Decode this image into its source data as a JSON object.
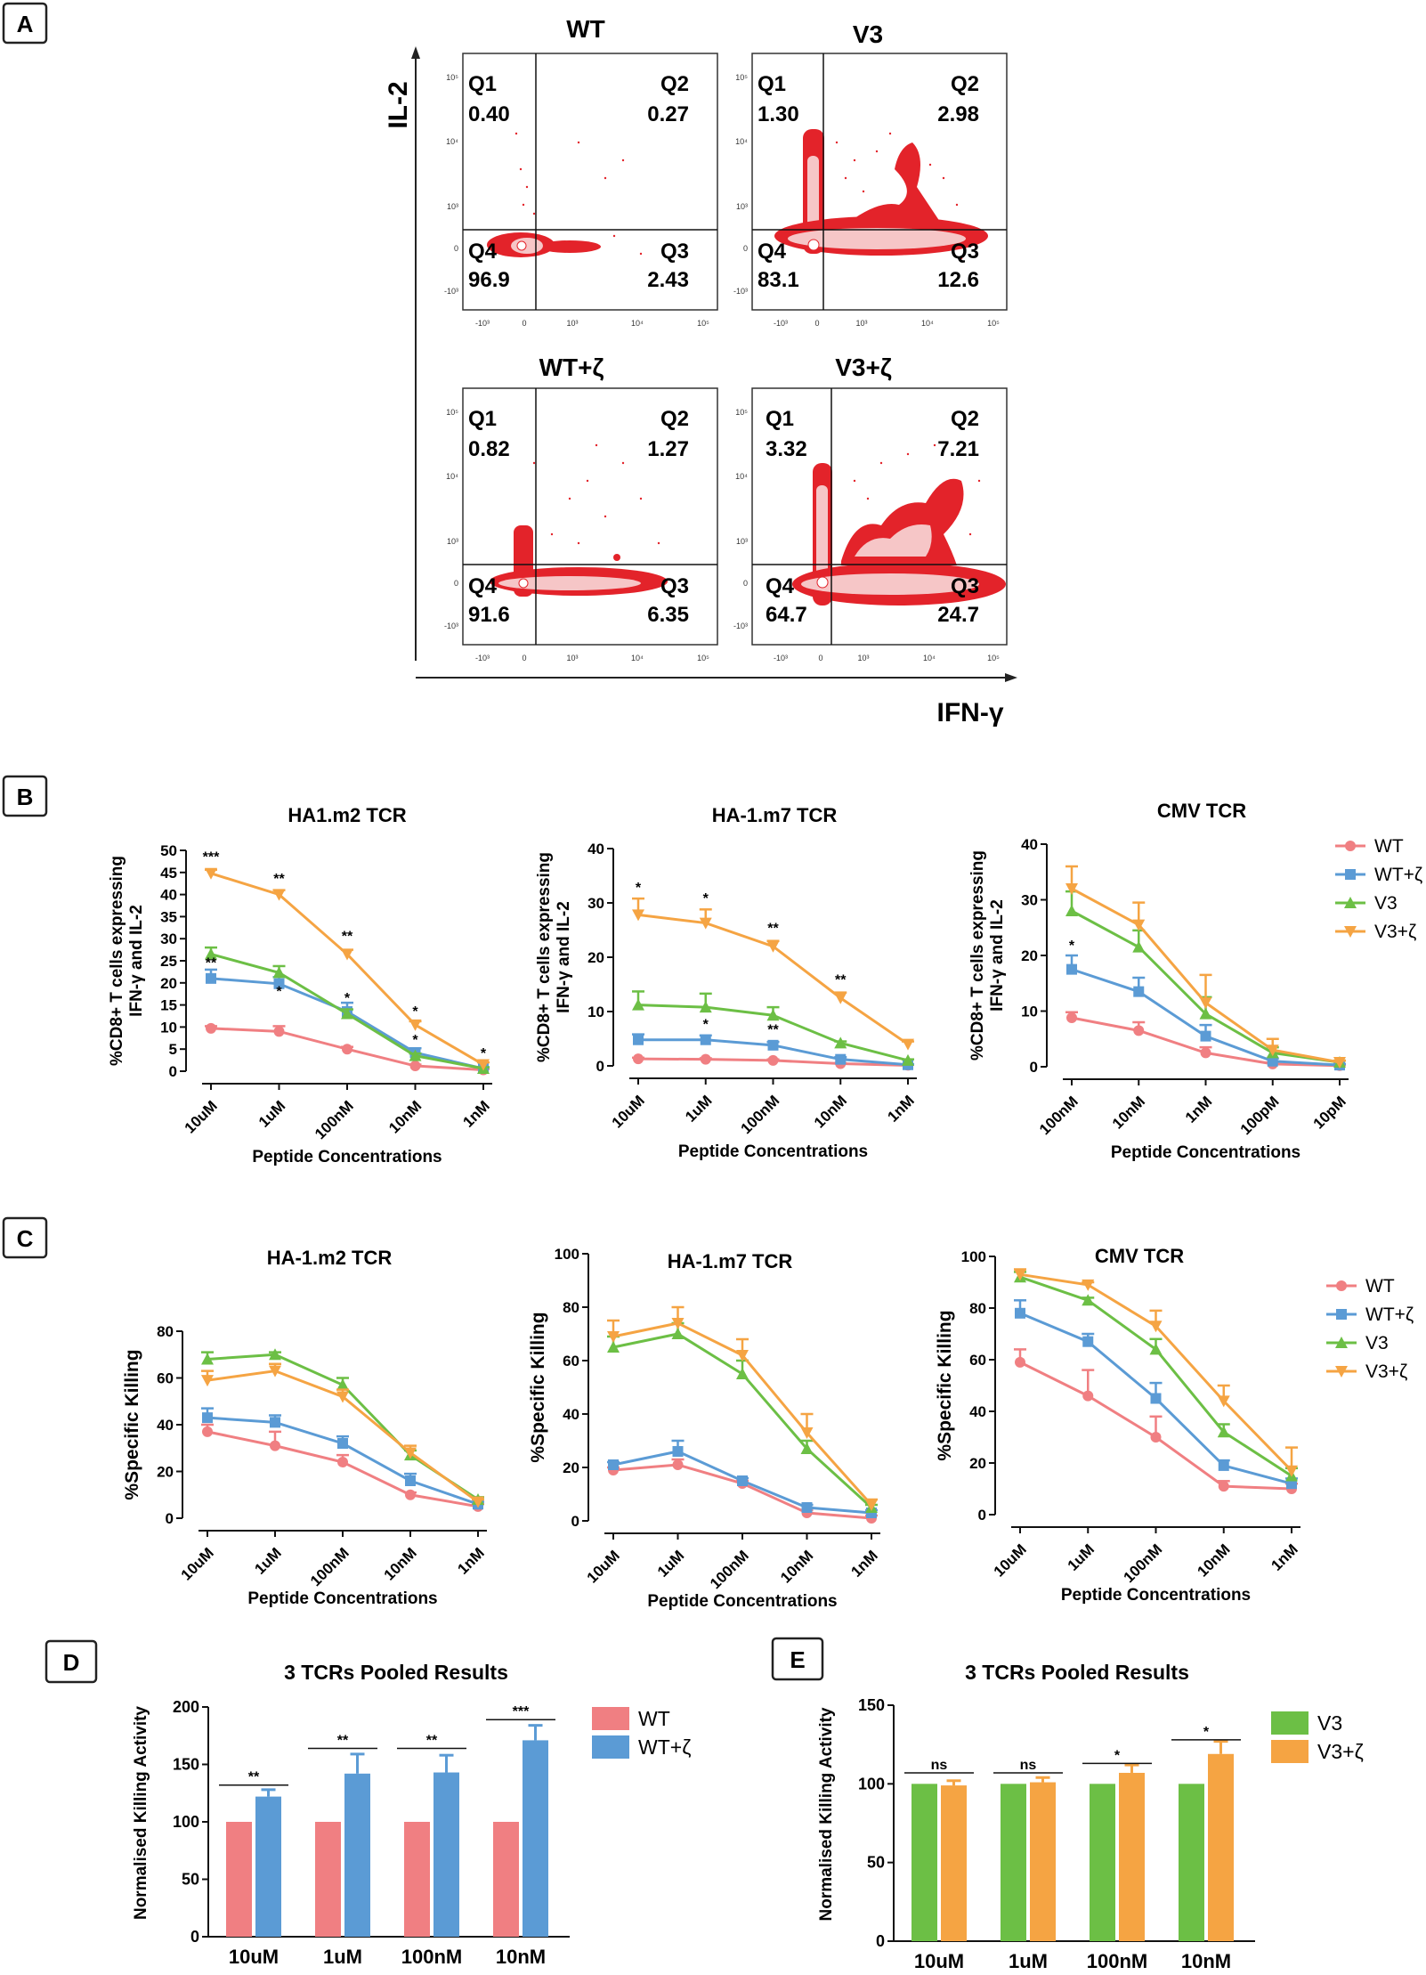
{
  "colors": {
    "WT": "#f07f82",
    "WT+ζ": "#5b9bd5",
    "V3": "#6cbf45",
    "V3+ζ": "#f5a443",
    "dotRed": "#e3232a"
  },
  "panelA": {
    "label": "A",
    "y_axis_label": "IL-2",
    "x_axis_label": "IFN-γ",
    "x_tick_labels": [
      "-10³",
      "0",
      "10³",
      "10⁴",
      "10⁵"
    ],
    "y_tick_labels": [
      "10⁵",
      "10⁴",
      "10³",
      "0",
      "-10³"
    ],
    "plots": [
      {
        "title": "WT",
        "Q1": "0.40",
        "Q2": "0.27",
        "Q3": "2.43",
        "Q4": "96.9"
      },
      {
        "title": "V3",
        "Q1": "1.30",
        "Q2": "2.98",
        "Q3": "12.6",
        "Q4": "83.1"
      },
      {
        "title": "WT+ζ",
        "Q1": "0.82",
        "Q2": "1.27",
        "Q3": "6.35",
        "Q4": "91.6"
      },
      {
        "title": "V3+ζ",
        "Q1": "3.32",
        "Q2": "7.21",
        "Q3": "24.7",
        "Q4": "64.7"
      }
    ]
  },
  "panelB": {
    "label": "B",
    "ylabel_line1": "%CD8+ T cells expressing",
    "ylabel_line2": "IFN-γ and IL-2",
    "xlabel": "Peptide Concentrations",
    "legend": [
      "WT",
      "WT+ζ",
      "V3",
      "V3+ζ"
    ]
  },
  "panelC": {
    "label": "C",
    "ylabel": "%Specific Killing",
    "xlabel": "Peptide Concentrations",
    "legend": [
      "WT",
      "WT+ζ",
      "V3",
      "V3+ζ"
    ]
  },
  "chart_data": [
    {
      "type": "line",
      "panel": "B",
      "title": "HA1.m2 TCR",
      "categories": [
        "10uM",
        "1uM",
        "100nM",
        "10nM",
        "1nM"
      ],
      "ylim": [
        0,
        50
      ],
      "yticks": [
        0,
        5,
        10,
        15,
        20,
        25,
        30,
        35,
        40,
        45,
        50
      ],
      "series": [
        {
          "name": "WT",
          "values": [
            9.7,
            9.0,
            5.0,
            1.2,
            0.3
          ],
          "err": [
            0.5,
            1.2,
            0.5,
            0.3,
            0.2
          ]
        },
        {
          "name": "WT+ζ",
          "values": [
            21.0,
            19.8,
            13.5,
            4.2,
            0.6
          ],
          "err": [
            2.0,
            1.5,
            2.0,
            1.0,
            0.3
          ]
        },
        {
          "name": "V3",
          "values": [
            26.5,
            22.3,
            13.0,
            3.5,
            0.6
          ],
          "err": [
            1.5,
            1.5,
            1.0,
            0.5,
            0.3
          ]
        },
        {
          "name": "V3+ζ",
          "values": [
            44.8,
            40.0,
            26.5,
            10.5,
            1.5
          ],
          "err": [
            0.8,
            1.0,
            1.0,
            0.8,
            0.5
          ]
        }
      ],
      "annotations": [
        {
          "text": "***",
          "category": "10uM",
          "y": 47.5
        },
        {
          "text": "**",
          "category": "1uM",
          "y": 42.5
        },
        {
          "text": "**",
          "category": "100nM",
          "y": 29.5
        },
        {
          "text": "*",
          "category": "10nM",
          "y": 12.5
        },
        {
          "text": "*",
          "category": "1nM",
          "y": 3.0
        },
        {
          "text": "**",
          "category": "10uM",
          "y": 23.5
        },
        {
          "text": "*",
          "category": "1uM",
          "y": 17.0
        },
        {
          "text": "*",
          "category": "100nM",
          "y": 15.5
        },
        {
          "text": "*",
          "category": "10nM",
          "y": 6.0
        }
      ]
    },
    {
      "type": "line",
      "panel": "B",
      "title": "HA-1.m7 TCR",
      "categories": [
        "10uM",
        "1uM",
        "100nM",
        "10nM",
        "1nM"
      ],
      "ylim": [
        0,
        40
      ],
      "yticks": [
        0,
        10,
        20,
        30,
        40
      ],
      "series": [
        {
          "name": "WT",
          "values": [
            1.3,
            1.2,
            1.0,
            0.4,
            0.1
          ],
          "err": [
            0.2,
            0.2,
            0.2,
            0.1,
            0.1
          ]
        },
        {
          "name": "WT+ζ",
          "values": [
            4.8,
            4.8,
            3.8,
            1.2,
            0.2
          ],
          "err": [
            1.0,
            0.8,
            0.6,
            0.4,
            0.1
          ]
        },
        {
          "name": "V3",
          "values": [
            11.2,
            10.8,
            9.3,
            4.2,
            1.0
          ],
          "err": [
            2.5,
            2.5,
            1.5,
            0.3,
            0.2
          ]
        },
        {
          "name": "V3+ζ",
          "values": [
            27.8,
            26.3,
            22.0,
            12.5,
            4.0
          ],
          "err": [
            3.0,
            2.5,
            1.0,
            1.0,
            0.5
          ]
        }
      ],
      "annotations": [
        {
          "text": "*",
          "category": "10uM",
          "y": 32.0
        },
        {
          "text": "*",
          "category": "1uM",
          "y": 30.0
        },
        {
          "text": "**",
          "category": "100nM",
          "y": 24.5
        },
        {
          "text": "**",
          "category": "10nM",
          "y": 15.0
        },
        {
          "text": "*",
          "category": "1uM",
          "y": 6.8
        },
        {
          "text": "**",
          "category": "100nM",
          "y": 5.8
        }
      ]
    },
    {
      "type": "line",
      "panel": "B",
      "title": "CMV TCR",
      "categories": [
        "100nM",
        "10nM",
        "1nM",
        "100pM",
        "10pM"
      ],
      "ylim": [
        0,
        40
      ],
      "yticks": [
        0,
        10,
        20,
        30,
        40
      ],
      "series": [
        {
          "name": "WT",
          "values": [
            8.8,
            6.5,
            2.5,
            0.5,
            0.2
          ],
          "err": [
            1.0,
            1.5,
            1.0,
            0.3,
            0.1
          ]
        },
        {
          "name": "WT+ζ",
          "values": [
            17.5,
            13.5,
            5.5,
            1.0,
            0.3
          ],
          "err": [
            2.5,
            2.5,
            2.0,
            0.5,
            0.2
          ]
        },
        {
          "name": "V3",
          "values": [
            28.0,
            21.5,
            9.5,
            2.5,
            0.8
          ],
          "err": [
            3.5,
            3.0,
            3.0,
            1.0,
            0.3
          ]
        },
        {
          "name": "V3+ζ",
          "values": [
            32.0,
            25.5,
            11.5,
            3.0,
            0.8
          ],
          "err": [
            4.0,
            4.0,
            5.0,
            2.0,
            0.3
          ]
        }
      ],
      "annotations": [
        {
          "text": "*",
          "category": "100nM",
          "y": 21.0
        }
      ]
    },
    {
      "type": "line",
      "panel": "C",
      "title": "HA-1.m2 TCR",
      "categories": [
        "10uM",
        "1uM",
        "100nM",
        "10nM",
        "1nM"
      ],
      "ylim": [
        0,
        80
      ],
      "yticks": [
        0,
        20,
        40,
        60,
        80
      ],
      "series": [
        {
          "name": "WT",
          "values": [
            37,
            31,
            24,
            10,
            5
          ],
          "err": [
            3,
            6,
            3,
            1,
            1
          ]
        },
        {
          "name": "WT+ζ",
          "values": [
            43,
            41,
            32,
            16,
            6
          ],
          "err": [
            4,
            3,
            3,
            3,
            1
          ]
        },
        {
          "name": "V3",
          "values": [
            68,
            70,
            57,
            27,
            8
          ],
          "err": [
            3,
            1,
            3,
            2,
            1
          ]
        },
        {
          "name": "V3+ζ",
          "values": [
            59,
            63,
            52,
            28,
            7
          ],
          "err": [
            4,
            3,
            3,
            3,
            1
          ]
        }
      ]
    },
    {
      "type": "line",
      "panel": "C",
      "title": "HA-1.m7 TCR",
      "categories": [
        "10uM",
        "1uM",
        "100nM",
        "10nM",
        "1nM"
      ],
      "ylim": [
        0,
        100
      ],
      "yticks": [
        0,
        20,
        40,
        60,
        80,
        100
      ],
      "series": [
        {
          "name": "WT",
          "values": [
            19,
            21,
            14,
            3,
            1
          ],
          "err": [
            1,
            2,
            1,
            1,
            1
          ]
        },
        {
          "name": "WT+ζ",
          "values": [
            21,
            26,
            15,
            5,
            3
          ],
          "err": [
            1,
            4,
            1,
            1,
            1
          ]
        },
        {
          "name": "V3",
          "values": [
            65,
            70,
            55,
            27,
            5
          ],
          "err": [
            4,
            4,
            5,
            3,
            1
          ]
        },
        {
          "name": "V3+ζ",
          "values": [
            69,
            74,
            62,
            33,
            6
          ],
          "err": [
            6,
            6,
            6,
            7,
            2
          ]
        }
      ]
    },
    {
      "type": "line",
      "panel": "C",
      "title": "CMV TCR",
      "categories": [
        "10uM",
        "1uM",
        "100nM",
        "10nM",
        "1nM"
      ],
      "ylim": [
        0,
        100
      ],
      "yticks": [
        0,
        20,
        40,
        60,
        80,
        100
      ],
      "series": [
        {
          "name": "WT",
          "values": [
            59,
            46,
            30,
            11,
            10
          ],
          "err": [
            5,
            10,
            8,
            2,
            2
          ]
        },
        {
          "name": "WT+ζ",
          "values": [
            78,
            67,
            45,
            19,
            12
          ],
          "err": [
            5,
            3,
            6,
            2,
            2
          ]
        },
        {
          "name": "V3",
          "values": [
            92,
            83,
            64,
            32,
            15
          ],
          "err": [
            2,
            1,
            4,
            3,
            3
          ]
        },
        {
          "name": "V3+ζ",
          "values": [
            93,
            89,
            73,
            44,
            17
          ],
          "err": [
            2,
            1,
            6,
            6,
            9
          ]
        }
      ]
    },
    {
      "type": "bar",
      "panel": "D",
      "label": "D",
      "title": "3 TCRs Pooled Results",
      "ylabel": "Normalised Killing Activity",
      "categories": [
        "10uM",
        "1uM",
        "100nM",
        "10nM"
      ],
      "ylim": [
        0,
        200
      ],
      "yticks": [
        0,
        50,
        100,
        150,
        200
      ],
      "series": [
        {
          "name": "WT",
          "values": [
            100,
            100,
            100,
            100
          ],
          "err": [
            0,
            0,
            0,
            0
          ]
        },
        {
          "name": "WT+ζ",
          "values": [
            122,
            142,
            143,
            171
          ],
          "err": [
            6,
            17,
            15,
            13
          ]
        }
      ],
      "significance": [
        "**",
        "**",
        "**",
        "***"
      ],
      "sig_y": [
        132,
        164,
        164,
        189
      ]
    },
    {
      "type": "bar",
      "panel": "E",
      "label": "E",
      "title": "3 TCRs Pooled Results",
      "ylabel": "Normalised Killing Activity",
      "categories": [
        "10uM",
        "1uM",
        "100nM",
        "10nM"
      ],
      "ylim": [
        0,
        150
      ],
      "yticks": [
        0,
        50,
        100,
        150
      ],
      "series": [
        {
          "name": "V3",
          "values": [
            100,
            100,
            100,
            100
          ],
          "err": [
            0,
            0,
            0,
            0
          ]
        },
        {
          "name": "V3+ζ",
          "values": [
            99,
            101,
            107,
            119
          ],
          "err": [
            3,
            3,
            5,
            8
          ]
        }
      ],
      "significance": [
        "ns",
        "ns",
        "*",
        "*"
      ],
      "sig_y": [
        107,
        107,
        113,
        128
      ]
    }
  ]
}
